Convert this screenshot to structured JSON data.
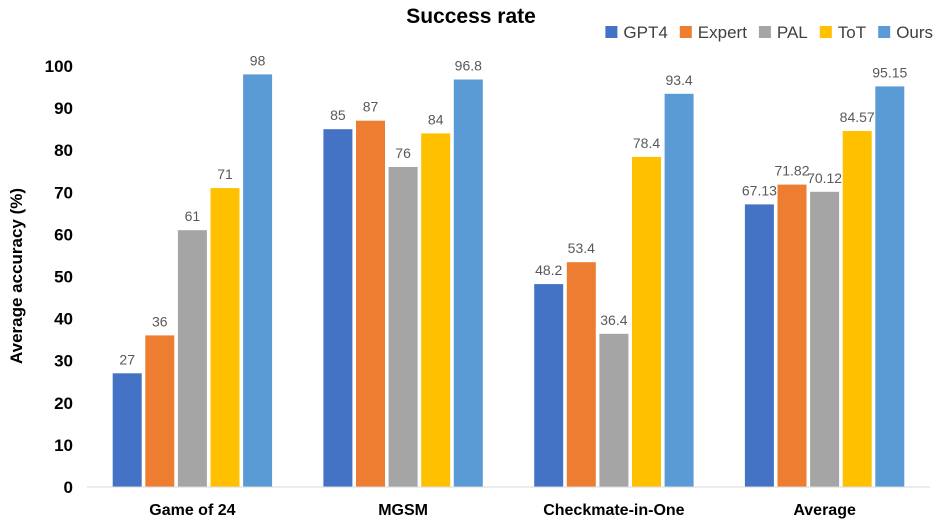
{
  "chart_data": {
    "type": "bar",
    "title": "Success rate",
    "xlabel": "",
    "ylabel": "Average accuracy (%)",
    "ylim": [
      0,
      100
    ],
    "yticks": [
      0,
      10,
      20,
      30,
      40,
      50,
      60,
      70,
      80,
      90,
      100
    ],
    "grid": false,
    "legend_position": "top-right",
    "categories": [
      "Game of 24",
      "MGSM",
      "Checkmate-in-One",
      "Average"
    ],
    "series": [
      {
        "name": "GPT4",
        "color": "#4472C4",
        "values": [
          27,
          85,
          48.2,
          67.13
        ],
        "labels": [
          "27",
          "85",
          "48.2",
          "67.13"
        ]
      },
      {
        "name": "Expert",
        "color": "#ED7D31",
        "values": [
          36,
          87,
          53.4,
          71.82
        ],
        "labels": [
          "36",
          "87",
          "53.4",
          "71.82"
        ]
      },
      {
        "name": "PAL",
        "color": "#A5A5A5",
        "values": [
          61,
          76,
          36.4,
          70.12
        ],
        "labels": [
          "61",
          "76",
          "36.4",
          "70.12"
        ]
      },
      {
        "name": "ToT",
        "color": "#FFC000",
        "values": [
          71,
          84,
          78.4,
          84.57
        ],
        "labels": [
          "71",
          "84",
          "78.4",
          "84.57"
        ]
      },
      {
        "name": "Ours",
        "color": "#5B9BD5",
        "values": [
          98,
          96.8,
          93.4,
          95.15
        ],
        "labels": [
          "98",
          "96.8",
          "93.4",
          "95.15"
        ]
      }
    ]
  }
}
